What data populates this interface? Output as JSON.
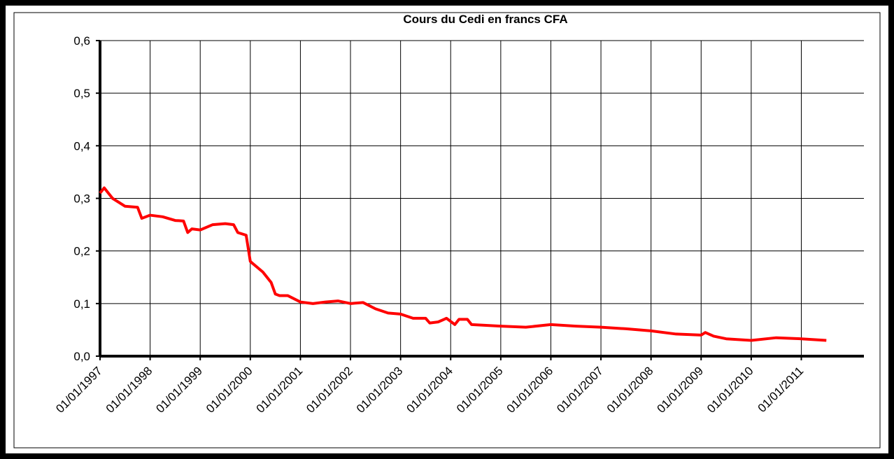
{
  "chart_data": {
    "type": "line",
    "title": "Cours du Cedi en francs CFA",
    "x": [
      "01/01/1997",
      "01/02/1997",
      "01/04/1997",
      "01/07/1997",
      "01/10/1997",
      "01/11/1997",
      "01/01/1998",
      "01/04/1998",
      "01/07/1998",
      "01/09/1998",
      "01/10/1998",
      "01/11/1998",
      "01/01/1999",
      "01/04/1999",
      "01/07/1999",
      "01/09/1999",
      "01/10/1999",
      "01/12/1999",
      "01/01/2000",
      "01/04/2000",
      "01/06/2000",
      "01/07/2000",
      "01/08/2000",
      "01/10/2000",
      "01/01/2001",
      "01/04/2001",
      "01/07/2001",
      "01/10/2001",
      "01/01/2002",
      "01/04/2002",
      "01/07/2002",
      "01/10/2002",
      "01/01/2003",
      "01/04/2003",
      "01/07/2003",
      "01/08/2003",
      "01/10/2003",
      "01/12/2003",
      "01/02/2004",
      "01/03/2004",
      "01/05/2004",
      "01/06/2004",
      "01/01/2005",
      "01/07/2005",
      "01/01/2006",
      "01/07/2006",
      "01/01/2007",
      "01/07/2007",
      "01/01/2008",
      "01/07/2008",
      "01/01/2009",
      "01/02/2009",
      "01/04/2009",
      "01/07/2009",
      "01/01/2010",
      "01/07/2010",
      "01/01/2011",
      "01/07/2011"
    ],
    "series": [
      {
        "name": "Cours du Cedi",
        "color": "#ff0000",
        "values": [
          0.31,
          0.32,
          0.3,
          0.285,
          0.283,
          0.262,
          0.268,
          0.265,
          0.258,
          0.257,
          0.235,
          0.242,
          0.24,
          0.25,
          0.252,
          0.25,
          0.235,
          0.23,
          0.18,
          0.16,
          0.14,
          0.118,
          0.115,
          0.115,
          0.103,
          0.1,
          0.103,
          0.105,
          0.1,
          0.102,
          0.09,
          0.082,
          0.08,
          0.072,
          0.072,
          0.063,
          0.065,
          0.072,
          0.06,
          0.07,
          0.07,
          0.06,
          0.057,
          0.055,
          0.06,
          0.057,
          0.055,
          0.052,
          0.048,
          0.042,
          0.04,
          0.045,
          0.038,
          0.033,
          0.03,
          0.035,
          0.033,
          0.03
        ]
      }
    ],
    "xlim": [
      "01/01/1997",
      "01/04/2012"
    ],
    "xticks": [
      "01/01/1997",
      "01/01/1998",
      "01/01/1999",
      "01/01/2000",
      "01/01/2001",
      "01/01/2002",
      "01/01/2003",
      "01/01/2004",
      "01/01/2005",
      "01/01/2006",
      "01/01/2007",
      "01/01/2008",
      "01/01/2009",
      "01/01/2010",
      "01/01/2011"
    ],
    "ylim": [
      0,
      0.6
    ],
    "yticks": [
      {
        "value": 0,
        "label": "0,0"
      },
      {
        "value": 0.1,
        "label": "0,1"
      },
      {
        "value": 0.2,
        "label": "0,2"
      },
      {
        "value": 0.3,
        "label": "0,3"
      },
      {
        "value": 0.4,
        "label": "0,4"
      },
      {
        "value": 0.5,
        "label": "0,5"
      },
      {
        "value": 0.6,
        "label": "0,6"
      }
    ],
    "grid": true
  }
}
